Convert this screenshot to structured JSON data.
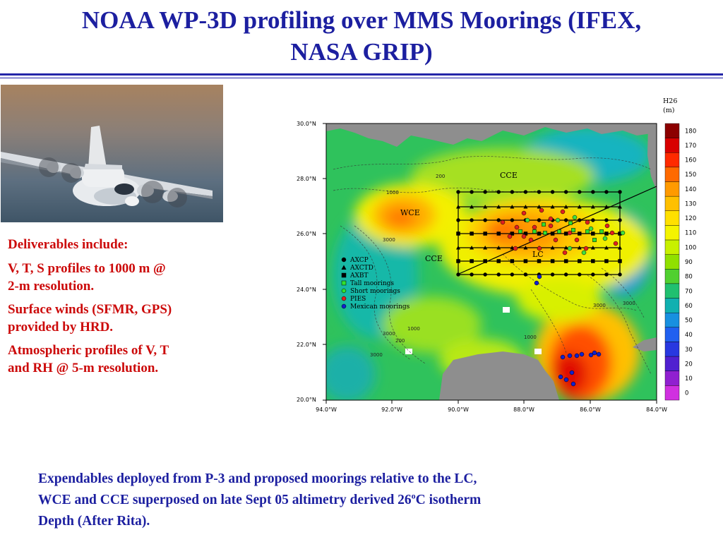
{
  "header": {
    "title_line1": "NOAA WP-3D profiling over MMS Moorings (IFEX,",
    "title_line2": "NASA GRIP)"
  },
  "deliverables": {
    "heading": "Deliverables include:",
    "item1_line1": "V, T, S profiles to 1000 m @",
    "item1_line2": "2-m resolution.",
    "item2_line1": "Surface winds (SFMR, GPS)",
    "item2_line2": "provided by HRD.",
    "item3_line1": "Atmospheric profiles of V, T",
    "item3_line2": "and RH @ 5-m resolution."
  },
  "caption": {
    "line1": "Expendables deployed from P-3 and proposed moorings relative to the LC,",
    "line2_pre": "WCE and CCE superposed on late Sept 05 altimetry derived 26",
    "line2_sup": "o",
    "line2_post": "C isotherm",
    "line3": "Depth (After Rita)."
  },
  "map": {
    "colorbar_title_line1": "H26",
    "colorbar_title_line2": "(m)",
    "colorbar_ticks": [
      "180",
      "170",
      "160",
      "150",
      "140",
      "130",
      "120",
      "110",
      "100",
      "90",
      "80",
      "70",
      "60",
      "50",
      "40",
      "30",
      "20",
      "10",
      "0"
    ],
    "colorbar_colors": [
      "#8c0000",
      "#d80000",
      "#ff2a00",
      "#ff6a00",
      "#ff9a00",
      "#ffc000",
      "#ffe000",
      "#f4f400",
      "#c8f000",
      "#90e000",
      "#50d030",
      "#20c070",
      "#10b0b0",
      "#1890e0",
      "#2060f0",
      "#2838e0",
      "#5020d0",
      "#9020d0",
      "#d030e0"
    ],
    "lat_ticks": [
      "30.0°N",
      "28.0°N",
      "26.0°N",
      "24.0°N",
      "22.0°N",
      "20.0°N"
    ],
    "lon_ticks": [
      "94.0°W",
      "92.0°W",
      "90.0°W",
      "88.0°W",
      "86.0°W",
      "84.0°W"
    ],
    "feature_labels": {
      "cce_north": "CCE",
      "wce": "WCE",
      "cce_west": "CCE",
      "lc": "LC"
    },
    "contour_labels": [
      "200",
      "1000",
      "3000",
      "3000",
      "3000",
      "1000",
      "3000",
      "200",
      "1000",
      "3000"
    ],
    "legend": [
      {
        "label": "AXCP",
        "symbol": "circle",
        "color": "#000000"
      },
      {
        "label": "AXCTD",
        "symbol": "triangle",
        "color": "#000000"
      },
      {
        "label": "AXBT",
        "symbol": "square",
        "color": "#000000"
      },
      {
        "label": "Tall moorings",
        "symbol": "square",
        "color": "#30e030"
      },
      {
        "label": "Short moorings",
        "symbol": "circle",
        "color": "#30e030"
      },
      {
        "label": "PIES",
        "symbol": "circle",
        "color": "#e02020"
      },
      {
        "label": "Mexican moorings",
        "symbol": "circle",
        "color": "#1020d0"
      }
    ]
  }
}
